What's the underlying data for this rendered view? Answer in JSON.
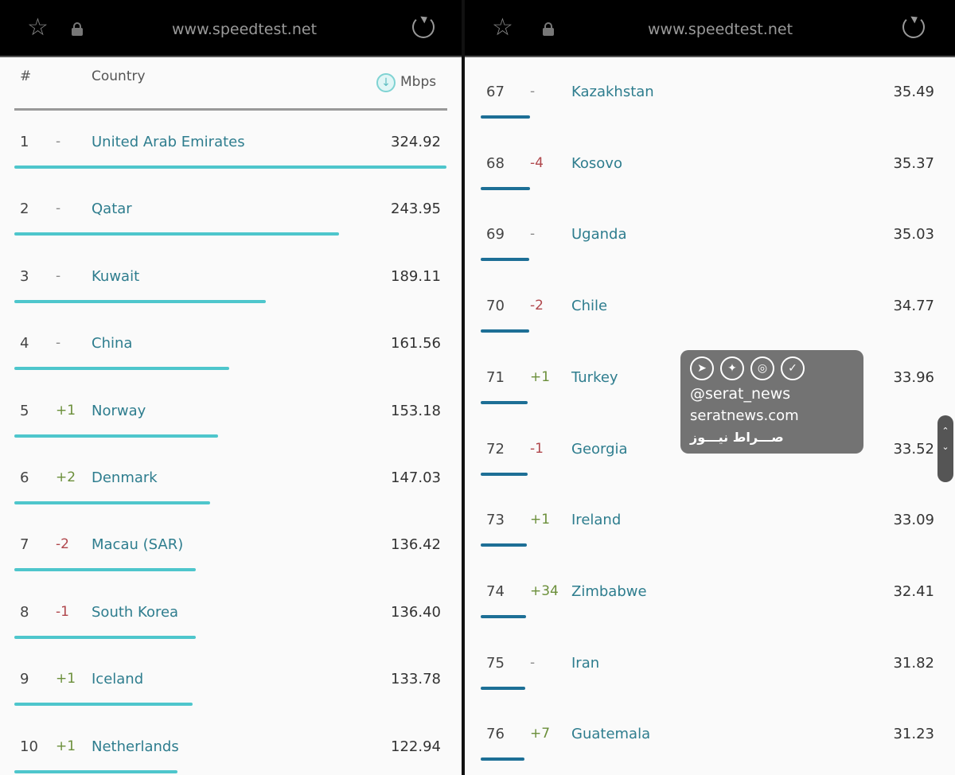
{
  "browser": {
    "url": "www.speedtest.net"
  },
  "header": {
    "rank": "#",
    "country": "Country",
    "unit": "Mbps"
  },
  "left_rows": [
    {
      "rank": "1",
      "change": "-",
      "country": "United Arab Emirates",
      "mbps": "324.92"
    },
    {
      "rank": "2",
      "change": "-",
      "country": "Qatar",
      "mbps": "243.95"
    },
    {
      "rank": "3",
      "change": "-",
      "country": "Kuwait",
      "mbps": "189.11"
    },
    {
      "rank": "4",
      "change": "-",
      "country": "China",
      "mbps": "161.56"
    },
    {
      "rank": "5",
      "change": "+1",
      "country": "Norway",
      "mbps": "153.18"
    },
    {
      "rank": "6",
      "change": "+2",
      "country": "Denmark",
      "mbps": "147.03"
    },
    {
      "rank": "7",
      "change": "-2",
      "country": "Macau (SAR)",
      "mbps": "136.42"
    },
    {
      "rank": "8",
      "change": "-1",
      "country": "South Korea",
      "mbps": "136.40"
    },
    {
      "rank": "9",
      "change": "+1",
      "country": "Iceland",
      "mbps": "133.78"
    },
    {
      "rank": "10",
      "change": "+1",
      "country": "Netherlands",
      "mbps": "122.94"
    }
  ],
  "right_rows": [
    {
      "rank": "67",
      "change": "-",
      "country": "Kazakhstan",
      "mbps": "35.49"
    },
    {
      "rank": "68",
      "change": "-4",
      "country": "Kosovo",
      "mbps": "35.37"
    },
    {
      "rank": "69",
      "change": "-",
      "country": "Uganda",
      "mbps": "35.03"
    },
    {
      "rank": "70",
      "change": "-2",
      "country": "Chile",
      "mbps": "34.77"
    },
    {
      "rank": "71",
      "change": "+1",
      "country": "Turkey",
      "mbps": "33.96"
    },
    {
      "rank": "72",
      "change": "-1",
      "country": "Georgia",
      "mbps": "33.52"
    },
    {
      "rank": "73",
      "change": "+1",
      "country": "Ireland",
      "mbps": "33.09"
    },
    {
      "rank": "74",
      "change": "+34",
      "country": "Zimbabwe",
      "mbps": "32.41"
    },
    {
      "rank": "75",
      "change": "-",
      "country": "Iran",
      "mbps": "31.82"
    },
    {
      "rank": "76",
      "change": "+7",
      "country": "Guatemala",
      "mbps": "31.23"
    }
  ],
  "watermark": {
    "handle": "@serat_news",
    "site": "seratnews.com",
    "persian": "صـــراط نیـــوز"
  },
  "colors": {
    "left_bar": "#4ec6cc",
    "right_bar": "#1d6f96",
    "country_text": "#2e7d8e",
    "up": "#6b8f3a",
    "down": "#b0474c"
  }
}
